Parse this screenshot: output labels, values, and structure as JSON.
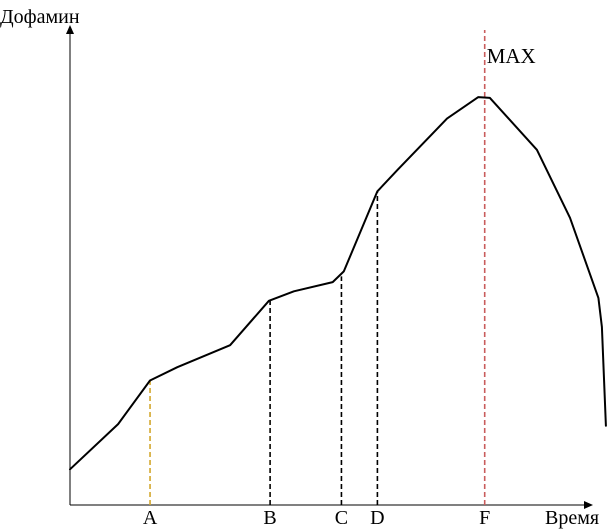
{
  "chart_data": {
    "type": "line",
    "ylabel": "Дофамин",
    "xlabel": "Время",
    "max_label": "MAX",
    "axis_color": "#000000",
    "line_color": "#000000",
    "grid": false,
    "legend": "none",
    "xlim": [
      0,
      100
    ],
    "ylim": [
      0,
      100
    ],
    "curve": [
      {
        "x": 0,
        "y": 8.6
      },
      {
        "x": 8.3,
        "y": 19.5
      },
      {
        "x": 13.8,
        "y": 30.0
      },
      {
        "x": 18.5,
        "y": 33.2
      },
      {
        "x": 27.6,
        "y": 38.5
      },
      {
        "x": 34.3,
        "y": 49.2
      },
      {
        "x": 38.6,
        "y": 51.5
      },
      {
        "x": 45.3,
        "y": 53.7
      },
      {
        "x": 47.2,
        "y": 56.3
      },
      {
        "x": 53.0,
        "y": 75.6
      },
      {
        "x": 56.5,
        "y": 80.8
      },
      {
        "x": 65.0,
        "y": 93.1
      },
      {
        "x": 70.4,
        "y": 98.3
      },
      {
        "x": 72.4,
        "y": 98.1
      },
      {
        "x": 80.5,
        "y": 85.6
      },
      {
        "x": 86.2,
        "y": 69.2
      },
      {
        "x": 91.1,
        "y": 49.9
      },
      {
        "x": 91.7,
        "y": 42.9
      },
      {
        "x": 92.4,
        "y": 19.1
      }
    ],
    "markers": [
      {
        "label": "A",
        "x": 13.8,
        "y": 30.0,
        "color": "#d4a72c"
      },
      {
        "label": "B",
        "x": 34.5,
        "y": 49.3,
        "color": "#000000"
      },
      {
        "label": "C",
        "x": 46.8,
        "y": 55.1,
        "color": "#000000"
      },
      {
        "label": "D",
        "x": 53.0,
        "y": 75.6,
        "color": "#000000"
      },
      {
        "label": "F",
        "x": 71.5,
        "y": 100,
        "color": "#c95c5c",
        "full_height": true
      }
    ]
  }
}
